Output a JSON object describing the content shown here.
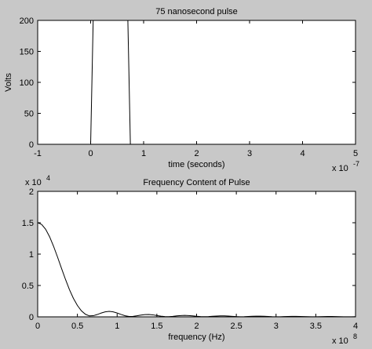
{
  "chart_data": [
    {
      "type": "line",
      "title": "75 nanosecond pulse",
      "xlabel": "time (seconds)",
      "ylabel": "Volts",
      "x_exponent_base": "x 10",
      "x_exponent": "-7",
      "xlim": [
        -1,
        5
      ],
      "ylim": [
        0,
        200
      ],
      "x_ticks": [
        -1,
        0,
        1,
        2,
        3,
        4,
        5
      ],
      "x_tick_labels": [
        "-1",
        "0",
        "1",
        "2",
        "3",
        "4",
        "5"
      ],
      "y_ticks": [
        0,
        50,
        100,
        150,
        200
      ],
      "y_tick_labels": [
        "0",
        "50",
        "100",
        "150",
        "200"
      ],
      "line_color": "#000000",
      "axes_background": "#ffffff",
      "grid": false,
      "series": [
        {
          "x": [
            -1,
            0,
            0.05,
            0.7,
            0.75,
            5
          ],
          "y": [
            0,
            0,
            210,
            210,
            0,
            0
          ]
        }
      ]
    },
    {
      "type": "line",
      "title": "Frequency Content of Pulse",
      "xlabel": "frequency (Hz)",
      "ylabel": "",
      "x_exponent_base": "x 10",
      "x_exponent": "8",
      "y_exponent_base": "x 10",
      "y_exponent": "4",
      "xlim": [
        0,
        4
      ],
      "ylim": [
        0,
        2
      ],
      "x_ticks": [
        0,
        0.5,
        1,
        1.5,
        2,
        2.5,
        3,
        3.5,
        4
      ],
      "x_tick_labels": [
        "0",
        "0.5",
        "1",
        "1.5",
        "2",
        "2.5",
        "3",
        "3.5",
        "4"
      ],
      "y_ticks": [
        0,
        0.5,
        1,
        1.5,
        2
      ],
      "y_tick_labels": [
        "0",
        "0.5",
        "1",
        "1.5",
        "2"
      ],
      "line_color": "#000000",
      "axes_background": "#ffffff",
      "grid": false,
      "series": [
        {
          "x": [
            0,
            0.05,
            0.1,
            0.15,
            0.2,
            0.25,
            0.3,
            0.35,
            0.4,
            0.45,
            0.5,
            0.55,
            0.6,
            0.65,
            0.7,
            0.75,
            0.8,
            0.85,
            0.9,
            0.95,
            1.0,
            1.05,
            1.1,
            1.15,
            1.2,
            1.25,
            1.3,
            1.35,
            1.4,
            1.45,
            1.5,
            1.55,
            1.6,
            1.65,
            1.7,
            1.75,
            1.8,
            1.85,
            1.9,
            1.95,
            2.0,
            2.05,
            2.1,
            2.15,
            2.2,
            2.25,
            2.3,
            2.35,
            2.4,
            2.45,
            2.5,
            2.55,
            2.6,
            2.65,
            2.7,
            2.75,
            2.8,
            2.85,
            2.9,
            2.95,
            3.0,
            3.05,
            3.1,
            3.15,
            3.2,
            3.25,
            3.3,
            3.35,
            3.4,
            3.45,
            3.5,
            3.55,
            3.6,
            3.65,
            3.7,
            3.75,
            3.8,
            3.85,
            3.9,
            3.95,
            4.0
          ],
          "y": [
            1.5,
            1.473,
            1.396,
            1.277,
            1.125,
            0.953,
            0.773,
            0.597,
            0.434,
            0.294,
            0.181,
            0.097,
            0.042,
            0.015,
            0.018,
            0.037,
            0.061,
            0.08,
            0.087,
            0.08,
            0.061,
            0.038,
            0.017,
            0.006,
            0.008,
            0.017,
            0.028,
            0.036,
            0.037,
            0.032,
            0.021,
            0.011,
            0.004,
            0.003,
            0.008,
            0.015,
            0.02,
            0.023,
            0.021,
            0.016,
            0.009,
            0.004,
            0.003,
            0.005,
            0.009,
            0.013,
            0.015,
            0.015,
            0.012,
            0.008,
            0.004,
            0.002,
            0.003,
            0.006,
            0.009,
            0.011,
            0.011,
            0.009,
            0.006,
            0.003,
            0.002,
            0.002,
            0.004,
            0.006,
            0.008,
            0.008,
            0.007,
            0.005,
            0.003,
            0.002,
            0.002,
            0.003,
            0.005,
            0.006,
            0.006,
            0.005,
            0.003,
            0.002,
            0.001,
            0.002,
            0.003
          ]
        }
      ]
    }
  ]
}
